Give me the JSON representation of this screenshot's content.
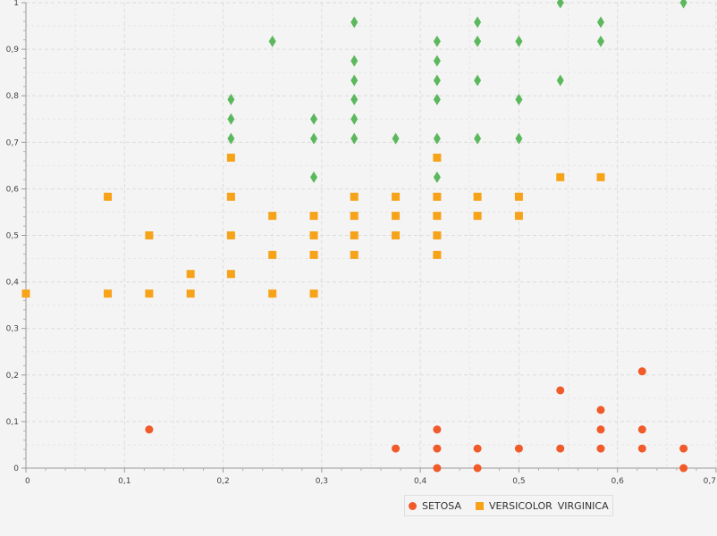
{
  "chart_data": {
    "type": "scatter",
    "title": "",
    "xlabel": "",
    "ylabel": "",
    "xlim": [
      0,
      0.7
    ],
    "ylim": [
      0,
      1
    ],
    "x_ticks": [
      "0",
      "0,1",
      "0,2",
      "0,3",
      "0,4",
      "0,5",
      "0,6",
      "0,7"
    ],
    "y_ticks": [
      "0",
      "0,1",
      "0,2",
      "0,3",
      "0,4",
      "0,5",
      "0,6",
      "0,7",
      "0,8",
      "0,9",
      "1"
    ],
    "grid": true,
    "legend_position": "bottom",
    "series": [
      {
        "name": "SETOSA",
        "color": "#f15a29",
        "marker": "circle",
        "points": [
          [
            0.125,
            0.083
          ],
          [
            0.375,
            0.042
          ],
          [
            0.417,
            0.083
          ],
          [
            0.417,
            0.042
          ],
          [
            0.417,
            0.0
          ],
          [
            0.458,
            0.042
          ],
          [
            0.458,
            0.0
          ],
          [
            0.5,
            0.042
          ],
          [
            0.542,
            0.167
          ],
          [
            0.542,
            0.042
          ],
          [
            0.583,
            0.125
          ],
          [
            0.583,
            0.083
          ],
          [
            0.583,
            0.042
          ],
          [
            0.625,
            0.208
          ],
          [
            0.625,
            0.083
          ],
          [
            0.625,
            0.042
          ],
          [
            0.667,
            0.042
          ],
          [
            0.667,
            0.0
          ]
        ]
      },
      {
        "name": "VERSICOLOR",
        "color": "#f7a31a",
        "marker": "square",
        "points": [
          [
            0.0,
            0.375
          ],
          [
            0.083,
            0.583
          ],
          [
            0.083,
            0.375
          ],
          [
            0.125,
            0.5
          ],
          [
            0.125,
            0.375
          ],
          [
            0.167,
            0.417
          ],
          [
            0.167,
            0.375
          ],
          [
            0.208,
            0.667
          ],
          [
            0.208,
            0.583
          ],
          [
            0.208,
            0.5
          ],
          [
            0.208,
            0.417
          ],
          [
            0.25,
            0.542
          ],
          [
            0.25,
            0.458
          ],
          [
            0.25,
            0.375
          ],
          [
            0.292,
            0.542
          ],
          [
            0.292,
            0.5
          ],
          [
            0.292,
            0.458
          ],
          [
            0.292,
            0.375
          ],
          [
            0.333,
            0.583
          ],
          [
            0.333,
            0.542
          ],
          [
            0.333,
            0.5
          ],
          [
            0.333,
            0.458
          ],
          [
            0.375,
            0.583
          ],
          [
            0.375,
            0.542
          ],
          [
            0.375,
            0.5
          ],
          [
            0.417,
            0.667
          ],
          [
            0.417,
            0.583
          ],
          [
            0.417,
            0.542
          ],
          [
            0.417,
            0.5
          ],
          [
            0.417,
            0.458
          ],
          [
            0.458,
            0.583
          ],
          [
            0.458,
            0.542
          ],
          [
            0.5,
            0.583
          ],
          [
            0.5,
            0.542
          ],
          [
            0.542,
            0.625
          ],
          [
            0.583,
            0.625
          ]
        ]
      },
      {
        "name": "VIRGINICA",
        "color": "#5cb85c",
        "marker": "diamond",
        "points": [
          [
            0.208,
            0.792
          ],
          [
            0.208,
            0.75
          ],
          [
            0.208,
            0.708
          ],
          [
            0.25,
            0.917
          ],
          [
            0.292,
            0.75
          ],
          [
            0.292,
            0.708
          ],
          [
            0.292,
            0.625
          ],
          [
            0.333,
            0.958
          ],
          [
            0.333,
            0.875
          ],
          [
            0.333,
            0.833
          ],
          [
            0.333,
            0.792
          ],
          [
            0.333,
            0.75
          ],
          [
            0.333,
            0.708
          ],
          [
            0.375,
            0.708
          ],
          [
            0.417,
            0.917
          ],
          [
            0.417,
            0.875
          ],
          [
            0.417,
            0.833
          ],
          [
            0.417,
            0.792
          ],
          [
            0.417,
            0.708
          ],
          [
            0.417,
            0.625
          ],
          [
            0.458,
            0.958
          ],
          [
            0.458,
            0.917
          ],
          [
            0.458,
            0.833
          ],
          [
            0.458,
            0.708
          ],
          [
            0.5,
            0.917
          ],
          [
            0.5,
            0.792
          ],
          [
            0.5,
            0.708
          ],
          [
            0.542,
            1.0
          ],
          [
            0.542,
            0.833
          ],
          [
            0.583,
            0.958
          ],
          [
            0.583,
            0.917
          ],
          [
            0.667,
            1.0
          ]
        ]
      }
    ]
  }
}
